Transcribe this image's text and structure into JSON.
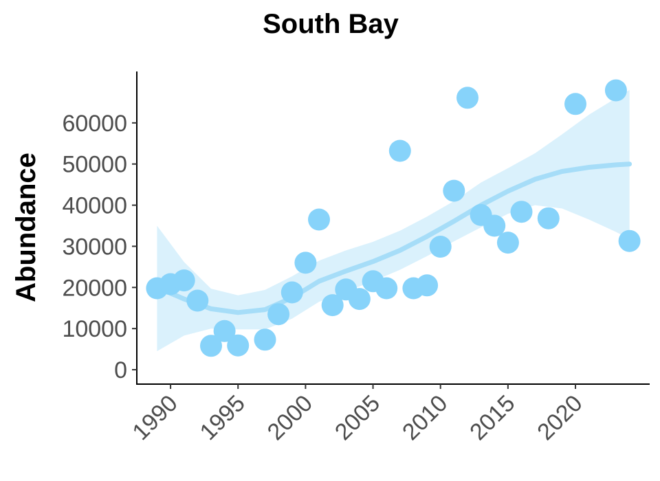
{
  "chart_data": {
    "type": "scatter",
    "title": "South Bay",
    "xlabel": "",
    "ylabel": "Abundance",
    "xlim": [
      1987.5,
      2025.5
    ],
    "ylim": [
      -3500,
      72500
    ],
    "xticks": [
      1990,
      1995,
      2000,
      2005,
      2010,
      2015,
      2020
    ],
    "xtick_labels": [
      "1990",
      "1995",
      "2000",
      "2005",
      "2010",
      "2015",
      "2020"
    ],
    "yticks": [
      0,
      10000,
      20000,
      30000,
      40000,
      50000,
      60000
    ],
    "ytick_labels": [
      "0",
      "10000",
      "20000",
      "30000",
      "40000",
      "50000",
      "60000"
    ],
    "grid": false,
    "legend": "none",
    "point_color": "#87d3fa",
    "smooth_color": "#a6ddf8",
    "band_color": "#d3effc",
    "series": [
      {
        "x": [
          1989,
          1990,
          1991,
          1992,
          1993,
          1994,
          1995,
          1997,
          1998,
          1999,
          2000,
          2001,
          2002,
          2003,
          2004,
          2005,
          2006,
          2007,
          2008,
          2009,
          2010,
          2011,
          2012,
          2013,
          2014,
          2015,
          2016,
          2018,
          2020,
          2023,
          2024
        ],
        "y": [
          19800,
          20800,
          21700,
          16800,
          5800,
          9400,
          5900,
          7300,
          13500,
          18800,
          26000,
          36500,
          15700,
          19500,
          17200,
          21500,
          19800,
          53200,
          19800,
          20500,
          29900,
          43500,
          66100,
          37600,
          35000,
          30900,
          38400,
          36800,
          64600,
          67900,
          31300
        ]
      }
    ],
    "smooth": {
      "x": [
        1989,
        1991,
        1993,
        1995,
        1997,
        1999,
        2001,
        2003,
        2005,
        2007,
        2009,
        2011,
        2013,
        2015,
        2017,
        2019,
        2021,
        2023,
        2024
      ],
      "y": [
        20000,
        17200,
        14800,
        13900,
        14600,
        17500,
        21500,
        24000,
        26300,
        29000,
        32400,
        36100,
        40000,
        43400,
        46300,
        48200,
        49200,
        49800,
        50000
      ],
      "lower": [
        4500,
        8300,
        10000,
        9800,
        9800,
        12400,
        16500,
        19000,
        21500,
        24300,
        27600,
        31200,
        34600,
        37900,
        40000,
        39200,
        36500,
        33500,
        31800
      ],
      "upper": [
        35000,
        26200,
        19700,
        18100,
        19400,
        22700,
        26500,
        29000,
        31100,
        33800,
        37200,
        41000,
        45500,
        49000,
        52600,
        57200,
        62000,
        66000,
        68000
      ]
    }
  }
}
